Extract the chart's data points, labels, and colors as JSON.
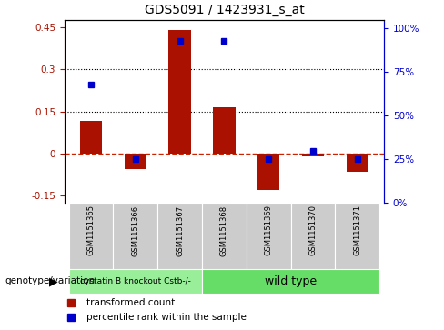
{
  "title": "GDS5091 / 1423931_s_at",
  "samples": [
    "GSM1151365",
    "GSM1151366",
    "GSM1151367",
    "GSM1151368",
    "GSM1151369",
    "GSM1151370",
    "GSM1151371"
  ],
  "red_bars": [
    0.115,
    -0.055,
    0.44,
    0.165,
    -0.13,
    -0.01,
    -0.065
  ],
  "blue_dots_pct": [
    68,
    25,
    93,
    93,
    25,
    30,
    25
  ],
  "ylim_left": [
    -0.175,
    0.475
  ],
  "ylim_right": [
    0,
    105
  ],
  "yticks_left": [
    -0.15,
    0.0,
    0.15,
    0.3,
    0.45
  ],
  "yticks_right": [
    0,
    25,
    50,
    75,
    100
  ],
  "ytick_labels_left": [
    "-0.15",
    "0",
    "0.15",
    "0.3",
    "0.45"
  ],
  "ytick_labels_right": [
    "0%",
    "25%",
    "50%",
    "75%",
    "100%"
  ],
  "hlines": [
    0.15,
    0.3
  ],
  "zero_line_color": "#cc2200",
  "bar_color": "#aa1100",
  "dot_color": "#0000cc",
  "hline_color": "#000000",
  "group1_label": "cystatin B knockout Cstb-/-",
  "group2_label": "wild type",
  "group1_color": "#99ee99",
  "group2_color": "#66dd66",
  "group1_indices": [
    0,
    1,
    2
  ],
  "group2_indices": [
    3,
    4,
    5,
    6
  ],
  "bg_color": "#cccccc",
  "legend_red": "transformed count",
  "legend_blue": "percentile rank within the sample",
  "bar_width": 0.5
}
